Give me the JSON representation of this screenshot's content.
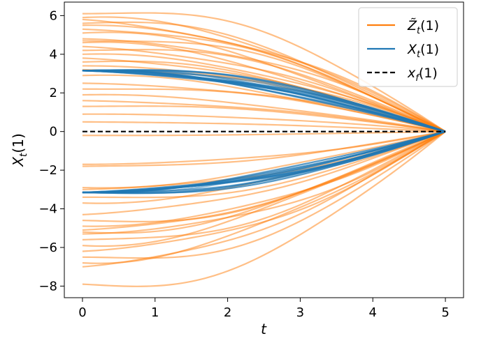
{
  "chart_data": {
    "type": "line",
    "xlabel": "t",
    "ylabel": "X_t(1)",
    "xlim": [
      -0.25,
      5.25
    ],
    "ylim": [
      -8.6,
      6.7
    ],
    "x_ticks": [
      0,
      1,
      2,
      3,
      4,
      5
    ],
    "y_ticks": [
      -8,
      -6,
      -4,
      -2,
      0,
      2,
      4,
      6
    ],
    "x_tick_labels": [
      "0",
      "1",
      "2",
      "3",
      "4",
      "5"
    ],
    "y_tick_labels": [
      "−8",
      "−6",
      "−4",
      "−2",
      "0",
      "2",
      "4",
      "6"
    ],
    "grid": false,
    "legend_position": "top-right",
    "legend": [
      {
        "label_main": "Z̃",
        "label_sub": "t",
        "label_tail": "(1)",
        "color": "#ff7f0e",
        "style": "solid"
      },
      {
        "label_main": "X",
        "label_sub": "t",
        "label_tail": "(1)",
        "color": "#1f77b4",
        "style": "solid"
      },
      {
        "label_main": "x",
        "label_sub": "f",
        "label_tail": "(1)",
        "color": "#000000",
        "style": "dashed"
      }
    ],
    "series": [
      {
        "name": "Z̃_t(1)",
        "color": "#ff7f0e",
        "opacity": 0.5,
        "t_end": 5,
        "start_values": [
          6.1,
          5.9,
          5.8,
          5.6,
          5.5,
          5.3,
          5.1,
          4.8,
          4.7,
          4.6,
          4.4,
          4.2,
          4.0,
          3.8,
          3.6,
          3.4,
          3.2,
          2.9,
          2.5,
          2.2,
          1.9,
          1.6,
          1.3,
          0.9,
          0.5,
          -0.2,
          -1.7,
          -1.8,
          -2.9,
          -3.0,
          -3.4,
          -3.7,
          -4.3,
          -4.6,
          -4.9,
          -5.1,
          -5.2,
          -5.3,
          -5.6,
          -5.9,
          -6.2,
          -6.5,
          -6.8,
          -7.0,
          -7.9
        ],
        "end_value": 0
      },
      {
        "name": "X_t(1)",
        "color": "#1f77b4",
        "opacity": 0.5,
        "t_end": 5,
        "start_values": [
          3.15,
          3.15,
          3.15,
          3.15,
          3.15,
          3.15,
          3.15,
          3.15,
          3.15,
          3.15,
          3.15,
          3.15,
          3.15,
          3.15,
          3.15,
          3.15,
          3.15,
          3.15,
          3.15,
          3.15,
          -3.15,
          -3.15,
          -3.15,
          -3.15,
          -3.15,
          -3.15,
          -3.15,
          -3.15,
          -3.15,
          -3.15,
          -3.15,
          -3.15,
          -3.15,
          -3.15,
          -3.15,
          -3.15,
          -3.15,
          -3.15,
          -3.15,
          -3.15
        ],
        "end_value": 0
      },
      {
        "name": "x_f(1)",
        "color": "#000000",
        "style": "dashed",
        "x": [
          0,
          5
        ],
        "values": [
          0,
          0
        ]
      }
    ]
  }
}
